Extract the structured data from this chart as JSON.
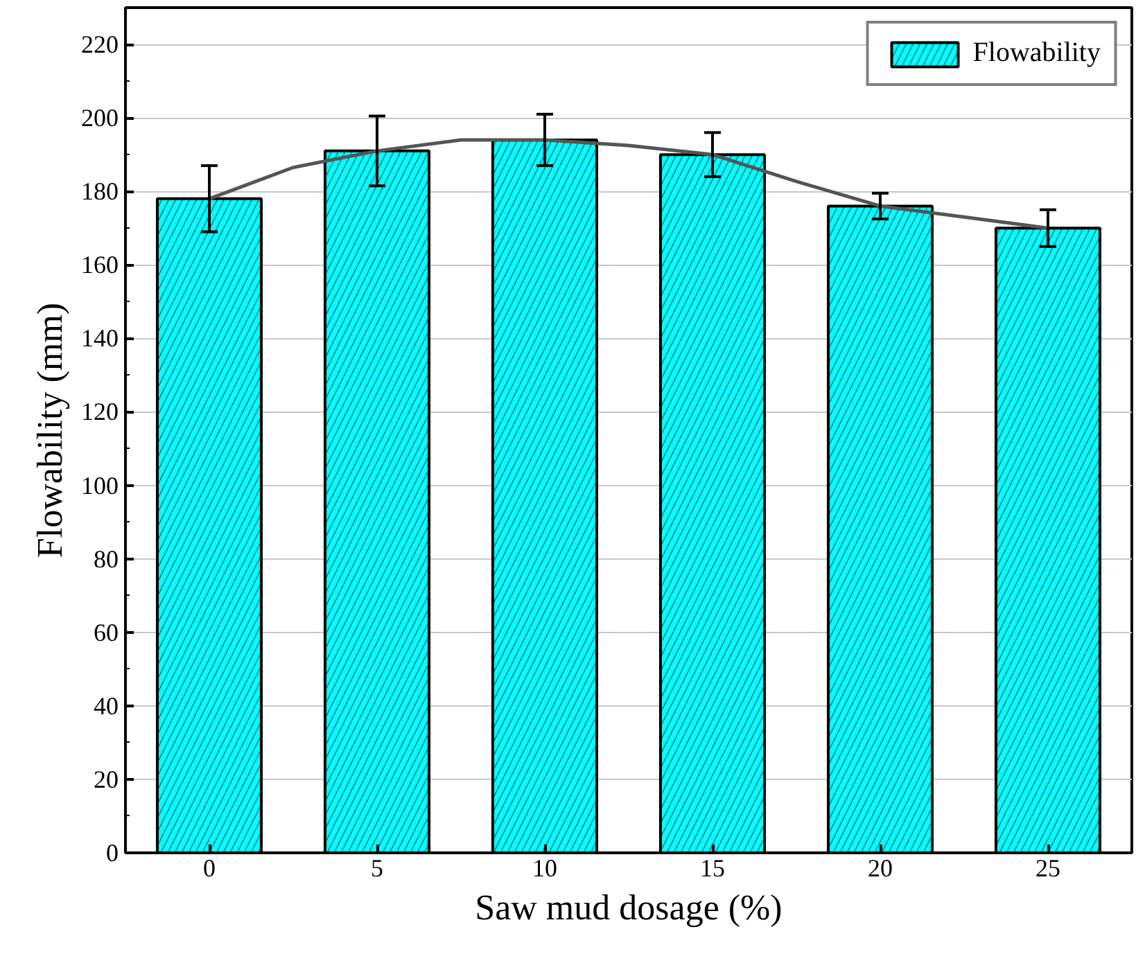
{
  "chart_data": {
    "type": "bar",
    "xlabel": "Saw mud dosage (%)",
    "ylabel": "Flowability (mm)",
    "x": [
      0,
      5,
      10,
      15,
      20,
      25
    ],
    "xlim": [
      -2.5,
      27.5
    ],
    "xticks": [
      0,
      5,
      10,
      15,
      20,
      25
    ],
    "ylim": [
      0,
      230
    ],
    "yticks": [
      0,
      20,
      40,
      60,
      80,
      100,
      120,
      140,
      160,
      180,
      200,
      220
    ],
    "grid": "y",
    "legend": "top right",
    "series": [
      {
        "name": "Flowability",
        "color": "#00ffff",
        "values": [
          178,
          191,
          194,
          190,
          176,
          170
        ],
        "errors": [
          9,
          9.5,
          7,
          6,
          3.5,
          5
        ]
      },
      {
        "type": "line",
        "color": "#555555",
        "x": [
          0,
          2.5,
          5,
          7.5,
          10,
          12.5,
          15,
          17.5,
          20,
          22.5,
          25
        ],
        "values": [
          178,
          186.5,
          191,
          194,
          194,
          192.5,
          190,
          182.7,
          176,
          173,
          170
        ]
      }
    ]
  }
}
